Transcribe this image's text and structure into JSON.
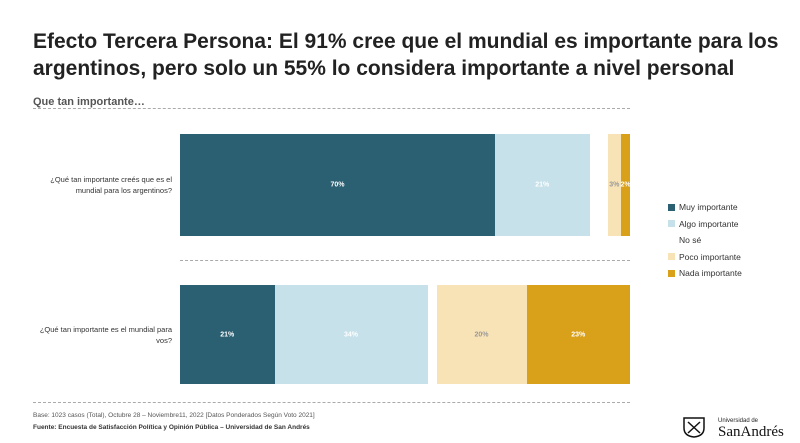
{
  "chart_data": {
    "type": "stacked-bar-horizontal",
    "title": "Efecto Tercera Persona: El 91% cree que el mundial es importante para los argentinos, pero solo un 55% lo considera importante a nivel personal",
    "subtitle": "Que tan importante…",
    "categories": [
      "¿Qué tan importante creés que es el mundial para los argentinos?",
      "¿Qué tan importante es el mundial para vos?"
    ],
    "series": [
      {
        "name": "Muy importante",
        "color": "#2b5f72",
        "values": [
          70,
          21
        ],
        "value_labels": [
          "70%",
          "21%"
        ]
      },
      {
        "name": "Algo importante",
        "color": "#c7e1ea",
        "values": [
          21,
          34
        ],
        "value_labels": [
          "21%",
          "34%"
        ]
      },
      {
        "name": "No sé",
        "color": "#ffffff",
        "values": [
          4,
          2
        ],
        "value_labels": [
          null,
          null
        ]
      },
      {
        "name": "Poco importante",
        "color": "#f8e3b6",
        "values": [
          3,
          20
        ],
        "value_labels": [
          "3%",
          "20%"
        ]
      },
      {
        "name": "Nada importante",
        "color": "#d9a01a",
        "values": [
          2,
          23
        ],
        "value_labels": [
          "2%",
          "23%"
        ]
      }
    ],
    "legend": "right",
    "notes": [
      "Base: 1023 casos (Total), Octubre 28 – Noviembre11,  2022 [Datos Ponderados Según Voto 2021]",
      "Fuente: Encuesta de Satisfacción Política y Opinión Pública – Universidad de San Andrés"
    ],
    "logo": {
      "line1": "Universidad de",
      "line2": "SanAndrés"
    }
  }
}
